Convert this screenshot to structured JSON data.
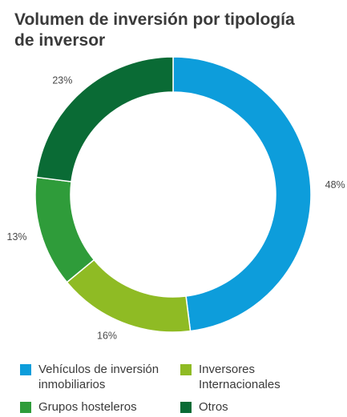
{
  "title_line1": "Volumen de inversión por tipología",
  "title_line2": "de inversor",
  "chart_data": {
    "type": "pie",
    "donut": true,
    "title": "Volumen de inversión por tipología de inversor",
    "categories": [
      "Vehículos de inversión inmobiliarios",
      "Inversores Internacionales",
      "Grupos hosteleros",
      "Otros"
    ],
    "values": [
      48,
      16,
      13,
      23
    ],
    "value_labels": [
      "48%",
      "16%",
      "13%",
      "23%"
    ],
    "colors": [
      "#0d9ddb",
      "#8fbb24",
      "#2f9c3a",
      "#0a6b35"
    ],
    "legend_placement": "bottom"
  },
  "legend": [
    {
      "label": "Vehículos de inversión\ninmobiliarios",
      "color": "#0d9ddb"
    },
    {
      "label": "Inversores\nInternacionales",
      "color": "#8fbb24"
    },
    {
      "label": "Grupos hosteleros",
      "color": "#2f9c3a"
    },
    {
      "label": "Otros",
      "color": "#0a6b35"
    }
  ]
}
